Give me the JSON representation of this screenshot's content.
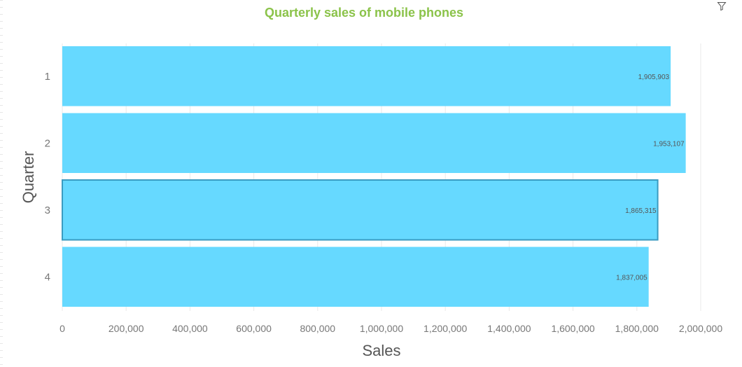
{
  "chart_data": {
    "type": "bar",
    "orientation": "horizontal",
    "title": "Quarterly sales of mobile phones",
    "xlabel": "Sales",
    "ylabel": "Quarter",
    "categories": [
      "1",
      "2",
      "3",
      "4"
    ],
    "values": [
      1905903,
      1953107,
      1865315,
      1837005
    ],
    "value_labels": [
      "1,905,903",
      "1,953,107",
      "1,865,315",
      "1,837,005"
    ],
    "xlim": [
      0,
      2000000
    ],
    "x_ticks": [
      0,
      200000,
      400000,
      600000,
      800000,
      1000000,
      1200000,
      1400000,
      1600000,
      1800000,
      2000000
    ],
    "x_tick_labels": [
      "0",
      "200,000",
      "400,000",
      "600,000",
      "800,000",
      "1,000,000",
      "1,200,000",
      "1,400,000",
      "1,600,000",
      "1,800,000",
      "2,000,000"
    ],
    "grid": true,
    "selected_category": "3",
    "colors": {
      "bar": "#66d9ff",
      "selected_outline": "#3a9bc1",
      "title": "#8bc34a",
      "axis_text": "#777777",
      "axis_title": "#555555",
      "grid": "#e9e9e9"
    }
  },
  "toolbar": {
    "filter_icon": "filter-icon"
  }
}
